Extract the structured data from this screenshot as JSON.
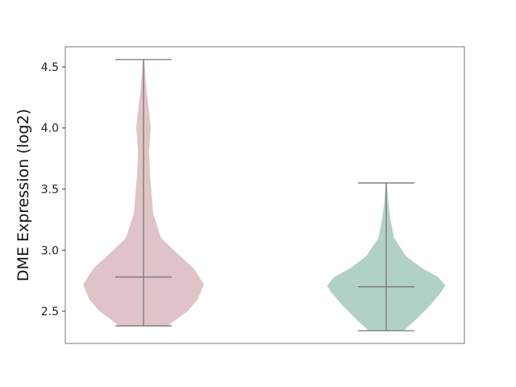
{
  "chart_data": {
    "type": "violin",
    "title": "",
    "xlabel": "",
    "ylabel": "DME Expression (log2)",
    "ylim": [
      2.236,
      4.665
    ],
    "yticks": [
      "2.5",
      "3.0",
      "3.5",
      "4.0",
      "4.5"
    ],
    "grid": false,
    "series": [
      {
        "color": "#e0c3c8",
        "min": 2.38,
        "median": 2.78,
        "max": 4.56,
        "density_y": [
          2.38,
          2.5,
          2.6,
          2.72,
          2.85,
          3.0,
          3.1,
          3.3,
          3.6,
          3.8,
          4.0,
          4.1,
          4.3,
          4.56
        ],
        "density_w": [
          0.4,
          0.73,
          0.9,
          1.0,
          0.83,
          0.5,
          0.29,
          0.16,
          0.11,
          0.09,
          0.12,
          0.1,
          0.05,
          0.01
        ]
      },
      {
        "color": "#b2d1c6",
        "min": 2.34,
        "median": 2.7,
        "max": 3.55,
        "density_y": [
          2.34,
          2.45,
          2.55,
          2.65,
          2.71,
          2.78,
          2.85,
          2.95,
          3.1,
          3.25,
          3.4,
          3.55
        ],
        "density_w": [
          0.29,
          0.53,
          0.73,
          0.9,
          0.98,
          0.86,
          0.6,
          0.33,
          0.13,
          0.07,
          0.03,
          0.01
        ]
      }
    ]
  }
}
